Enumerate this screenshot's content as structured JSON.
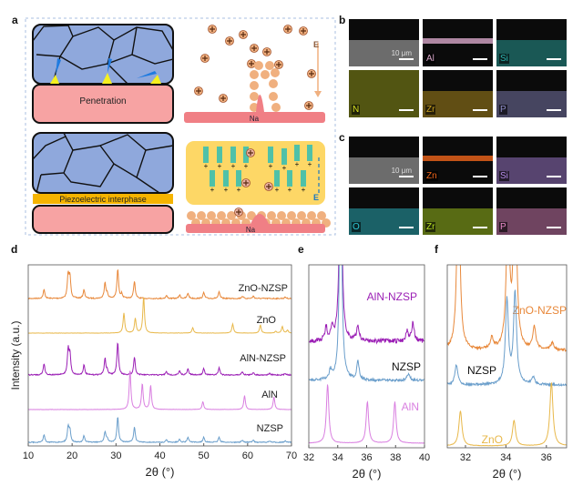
{
  "panel_labels": {
    "a": "a",
    "b": "b",
    "c": "c",
    "d": "d",
    "e": "e",
    "f": "f"
  },
  "panel_a": {
    "penetration_label": "Penetration",
    "interphase_label": "Piezoelectric interphase",
    "na_label_top": "Na",
    "na_label_bottom": "Na",
    "field_label_top": "E",
    "field_label_bottom": "E",
    "colors": {
      "grain": "#8fa8dc",
      "na": "#f07f85",
      "ion": "#f0b07f",
      "interphase": "#f5b400",
      "piezo_bg": "#fdd766",
      "dipole": "#4fc1a8"
    }
  },
  "panel_b": {
    "tiles": [
      {
        "label": "",
        "scale": "10 μm",
        "color": "#bdbdbd"
      },
      {
        "label": "Al",
        "color": "#d7a6c8"
      },
      {
        "label": "Si",
        "color": "#2db5b0"
      },
      {
        "label": "N",
        "color": "#d8e020"
      },
      {
        "label": "Zr",
        "color": "#c9a020"
      },
      {
        "label": "P",
        "color": "#8d8cc7"
      }
    ]
  },
  "panel_c": {
    "tiles": [
      {
        "label": "",
        "scale": "10 μm",
        "color": "#bdbdbd"
      },
      {
        "label": "Zn",
        "color": "#f0651a"
      },
      {
        "label": "Si",
        "color": "#b48ae8"
      },
      {
        "label": "O",
        "color": "#2ec9d6"
      },
      {
        "label": "Zr",
        "color": "#b6e020"
      },
      {
        "label": "P",
        "color": "#e889c8"
      }
    ]
  },
  "chart_data": [
    {
      "panel": "d",
      "type": "line",
      "xlabel": "2θ (°)",
      "ylabel": "Intensity (a.u.)",
      "xlim": [
        10,
        70
      ],
      "xticks": [
        "10",
        "20",
        "30",
        "40",
        "50",
        "60",
        "70"
      ],
      "yticks": [],
      "grid": false,
      "stacked": true,
      "series": [
        {
          "name": "ZnO-NZSP",
          "color": "#e8883a",
          "peaks": [
            [
              13.6,
              0.3
            ],
            [
              19.1,
              0.8
            ],
            [
              19.5,
              0.7
            ],
            [
              22.7,
              0.3
            ],
            [
              27.5,
              0.55
            ],
            [
              28.0,
              0.15
            ],
            [
              30.4,
              1.0
            ],
            [
              31.3,
              0.15
            ],
            [
              34.2,
              0.6
            ],
            [
              41.5,
              0.1
            ],
            [
              44.5,
              0.12
            ],
            [
              46.4,
              0.18
            ],
            [
              50.0,
              0.2
            ],
            [
              53.5,
              0.22
            ],
            [
              58.8,
              0.08
            ],
            [
              61.3,
              0.08
            ],
            [
              68.6,
              0.05
            ]
          ]
        },
        {
          "name": "ZnO",
          "color": "#e8b84a",
          "peaks": [
            [
              31.8,
              0.55
            ],
            [
              34.4,
              0.4
            ],
            [
              36.3,
              1.0
            ],
            [
              47.5,
              0.15
            ],
            [
              56.6,
              0.25
            ],
            [
              62.9,
              0.22
            ],
            [
              66.4,
              0.05
            ],
            [
              67.9,
              0.18
            ],
            [
              69.1,
              0.08
            ]
          ]
        },
        {
          "name": "AlN-NZSP",
          "color": "#9b1fb5",
          "peaks": [
            [
              13.6,
              0.35
            ],
            [
              19.1,
              0.75
            ],
            [
              19.5,
              0.6
            ],
            [
              22.7,
              0.3
            ],
            [
              27.5,
              0.5
            ],
            [
              28.0,
              0.12
            ],
            [
              30.4,
              1.0
            ],
            [
              34.2,
              0.55
            ],
            [
              41.5,
              0.1
            ],
            [
              44.5,
              0.12
            ],
            [
              46.4,
              0.18
            ],
            [
              50.0,
              0.2
            ],
            [
              53.5,
              0.22
            ],
            [
              58.8,
              0.1
            ],
            [
              61.3,
              0.08
            ],
            [
              65.0,
              0.05
            ],
            [
              68.6,
              0.05
            ]
          ]
        },
        {
          "name": "AlN",
          "color": "#d97fe0",
          "peaks": [
            [
              33.2,
              1.0
            ],
            [
              36.0,
              0.65
            ],
            [
              37.9,
              0.6
            ],
            [
              49.8,
              0.2
            ],
            [
              59.3,
              0.35
            ],
            [
              66.0,
              0.32
            ]
          ]
        },
        {
          "name": "NZSP",
          "color": "#6a9ecb",
          "peaks": [
            [
              13.6,
              0.3
            ],
            [
              19.1,
              0.6
            ],
            [
              19.5,
              0.45
            ],
            [
              22.7,
              0.25
            ],
            [
              27.5,
              0.4
            ],
            [
              28.0,
              0.15
            ],
            [
              30.4,
              1.0
            ],
            [
              34.2,
              0.6
            ],
            [
              41.5,
              0.1
            ],
            [
              44.5,
              0.12
            ],
            [
              46.4,
              0.2
            ],
            [
              50.0,
              0.2
            ],
            [
              53.5,
              0.2
            ],
            [
              58.8,
              0.08
            ],
            [
              61.3,
              0.08
            ],
            [
              65.0,
              0.05
            ],
            [
              68.6,
              0.05
            ]
          ]
        }
      ]
    },
    {
      "panel": "e",
      "type": "line",
      "xlabel": "2θ (°)",
      "xlim": [
        32,
        40
      ],
      "xticks": [
        "32",
        "34",
        "36",
        "38",
        "40"
      ],
      "grid": false,
      "stacked": true,
      "series": [
        {
          "name": "AlN-NZSP",
          "color": "#9b1fb5",
          "peaks": [
            [
              33.2,
              0.35
            ],
            [
              33.6,
              0.3
            ],
            [
              34.2,
              6.0
            ],
            [
              35.4,
              0.4
            ],
            [
              38.8,
              0.3
            ],
            [
              39.2,
              0.5
            ]
          ]
        },
        {
          "name": "NZSP",
          "color": "#6a9ecb",
          "peaks": [
            [
              33.5,
              0.25
            ],
            [
              34.2,
              6.0
            ],
            [
              35.4,
              0.5
            ],
            [
              38.9,
              0.2
            ]
          ]
        },
        {
          "name": "AlN",
          "color": "#d97fe0",
          "peaks": [
            [
              33.3,
              1.0
            ],
            [
              36.05,
              0.7
            ],
            [
              37.95,
              0.7
            ]
          ]
        }
      ]
    },
    {
      "panel": "f",
      "type": "line",
      "xlabel": "2θ (°)",
      "xlim": [
        31.1,
        37
      ],
      "xticks": [
        "32",
        "34",
        "36"
      ],
      "grid": false,
      "stacked": true,
      "series": [
        {
          "name": "ZnO-NZSP",
          "color": "#e8883a",
          "peaks": [
            [
              31.65,
              5.0
            ],
            [
              33.3,
              0.3
            ],
            [
              34.1,
              4.0
            ],
            [
              34.45,
              5.0
            ],
            [
              35.4,
              0.6
            ],
            [
              36.3,
              0.2
            ]
          ]
        },
        {
          "name": "NZSP",
          "color": "#6a9ecb",
          "peaks": [
            [
              31.55,
              0.55
            ],
            [
              34.05,
              2.3
            ],
            [
              34.45,
              2.5
            ],
            [
              35.35,
              0.2
            ]
          ]
        },
        {
          "name": "ZnO",
          "color": "#e8b84a",
          "peaks": [
            [
              31.75,
              0.55
            ],
            [
              34.4,
              0.4
            ],
            [
              36.25,
              1.0
            ]
          ]
        }
      ]
    }
  ]
}
